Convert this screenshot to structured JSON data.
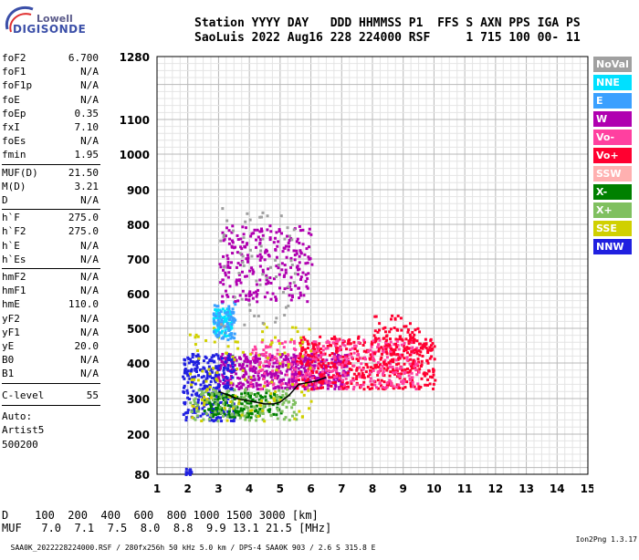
{
  "logo": {
    "top": "Lowell",
    "bottom": "DIGISONDE"
  },
  "header": {
    "line1": "Station YYYY DAY   DDD HHMMSS P1  FFS S AXN PPS IGA PS",
    "line2": "SaoLuis 2022 Aug16 228 224000 RSF     1 715 100 00- 11"
  },
  "params": [
    {
      "name": "foF2",
      "value": "6.700"
    },
    {
      "name": "foF1",
      "value": "N/A"
    },
    {
      "name": "foF1p",
      "value": "N/A"
    },
    {
      "name": "foE",
      "value": "N/A"
    },
    {
      "name": "foEp",
      "value": "0.35"
    },
    {
      "name": "fxI",
      "value": "7.10"
    },
    {
      "name": "foEs",
      "value": "N/A"
    },
    {
      "name": "fmin",
      "value": "1.95"
    },
    {
      "name": "MUF(D)",
      "value": "21.50"
    },
    {
      "name": "M(D)",
      "value": "3.21"
    },
    {
      "name": "D",
      "value": "N/A"
    },
    {
      "name": "h`F",
      "value": "275.0"
    },
    {
      "name": "h`F2",
      "value": "275.0"
    },
    {
      "name": "h`E",
      "value": "N/A"
    },
    {
      "name": "h`Es",
      "value": "N/A"
    },
    {
      "name": "hmF2",
      "value": "N/A"
    },
    {
      "name": "hmF1",
      "value": "N/A"
    },
    {
      "name": "hmE",
      "value": "110.0"
    },
    {
      "name": "yF2",
      "value": "N/A"
    },
    {
      "name": "yF1",
      "value": "N/A"
    },
    {
      "name": "yE",
      "value": "20.0"
    },
    {
      "name": "B0",
      "value": "N/A"
    },
    {
      "name": "B1",
      "value": "N/A"
    },
    {
      "name": "C-level",
      "value": "55"
    }
  ],
  "auto": {
    "line1": "Auto:",
    "line2": "Artist5",
    "line3": "500200"
  },
  "legend": [
    {
      "label": "NoVal",
      "color": "#a0a0a0"
    },
    {
      "label": "NNE",
      "color": "#00e0ff"
    },
    {
      "label": "E",
      "color": "#3aa0ff"
    },
    {
      "label": "W",
      "color": "#b000b0"
    },
    {
      "label": "Vo-",
      "color": "#ff40a0"
    },
    {
      "label": "Vo+",
      "color": "#ff0030"
    },
    {
      "label": "SSW",
      "color": "#ffb0b0"
    },
    {
      "label": "X-",
      "color": "#008000"
    },
    {
      "label": "X+",
      "color": "#80c060"
    },
    {
      "label": "SSE",
      "color": "#d0d000"
    },
    {
      "label": "NNW",
      "color": "#2020e0"
    }
  ],
  "footer": {
    "d_row": "D    100  200  400  600  800 1000 1500 3000 [km]",
    "muf_row": "MUF   7.0  7.1  7.5  8.0  8.8  9.9 13.1 21.5 [MHz]"
  },
  "bottom": {
    "left": "SAA0K_2022228224000.RSF / 280fx256h 50 kHz 5.0 km / DPS-4 SAA0K 903 / 2.6 S 315.8 E",
    "right": "Ion2Png 1.3.17"
  },
  "chart_data": {
    "type": "scatter",
    "x_ticks": [
      1,
      2,
      3,
      4,
      5,
      6,
      7,
      8,
      9,
      10,
      11,
      12,
      13,
      14,
      15
    ],
    "y_ticks": [
      80,
      200,
      300,
      400,
      500,
      600,
      700,
      800,
      900,
      1000,
      1100,
      1280
    ],
    "xlim": [
      1,
      15
    ],
    "ylim": [
      80,
      1280
    ],
    "grid": true,
    "clusters": [
      {
        "name": "W",
        "color": "#b000b0",
        "x_range": [
          2.9,
          7.2
        ],
        "y_range": [
          330,
          430
        ],
        "count": 520
      },
      {
        "name": "Vo+",
        "color": "#ff0030",
        "x_range": [
          5.5,
          10.0
        ],
        "y_range": [
          330,
          480
        ],
        "count": 460
      },
      {
        "name": "Vo-",
        "color": "#ff40a0",
        "x_range": [
          4.0,
          9.5
        ],
        "y_range": [
          330,
          470
        ],
        "count": 300
      },
      {
        "name": "NNW",
        "color": "#2020e0",
        "x_range": [
          1.8,
          3.5
        ],
        "y_range": [
          240,
          430
        ],
        "count": 280
      },
      {
        "name": "X-",
        "color": "#008000",
        "x_range": [
          2.5,
          5.0
        ],
        "y_range": [
          250,
          320
        ],
        "count": 160
      },
      {
        "name": "X+",
        "color": "#80c060",
        "x_range": [
          2.0,
          5.5
        ],
        "y_range": [
          240,
          330
        ],
        "count": 140
      },
      {
        "name": "SSE",
        "color": "#d0d000",
        "x_range": [
          2.0,
          6.0
        ],
        "y_range": [
          240,
          520
        ],
        "count": 120
      },
      {
        "name": "NNE",
        "color": "#00e0ff",
        "x_range": [
          2.8,
          3.4
        ],
        "y_range": [
          480,
          560
        ],
        "count": 90
      },
      {
        "name": "E",
        "color": "#3aa0ff",
        "x_range": [
          2.8,
          3.5
        ],
        "y_range": [
          470,
          580
        ],
        "count": 70
      },
      {
        "name": "W",
        "color": "#b000b0",
        "x_range": [
          3.0,
          6.0
        ],
        "y_range": [
          580,
          800
        ],
        "count": 260
      },
      {
        "name": "NoVal",
        "color": "#a0a0a0",
        "x_range": [
          3.0,
          5.5
        ],
        "y_range": [
          500,
          850
        ],
        "count": 60
      },
      {
        "name": "Vo+",
        "color": "#ff0030",
        "x_range": [
          8.0,
          9.5
        ],
        "y_range": [
          400,
          540
        ],
        "count": 90
      },
      {
        "name": "NNW",
        "color": "#2020e0",
        "x_range": [
          1.9,
          2.1
        ],
        "y_range": [
          80,
          100
        ],
        "count": 14
      }
    ],
    "trace": {
      "color": "#000000",
      "x": [
        3.0,
        3.3,
        3.6,
        3.9,
        4.2,
        4.5,
        4.8,
        5.0,
        5.3,
        5.6,
        5.9,
        6.2,
        6.5
      ],
      "y": [
        320,
        310,
        300,
        295,
        290,
        285,
        285,
        290,
        310,
        340,
        345,
        350,
        360
      ]
    }
  }
}
